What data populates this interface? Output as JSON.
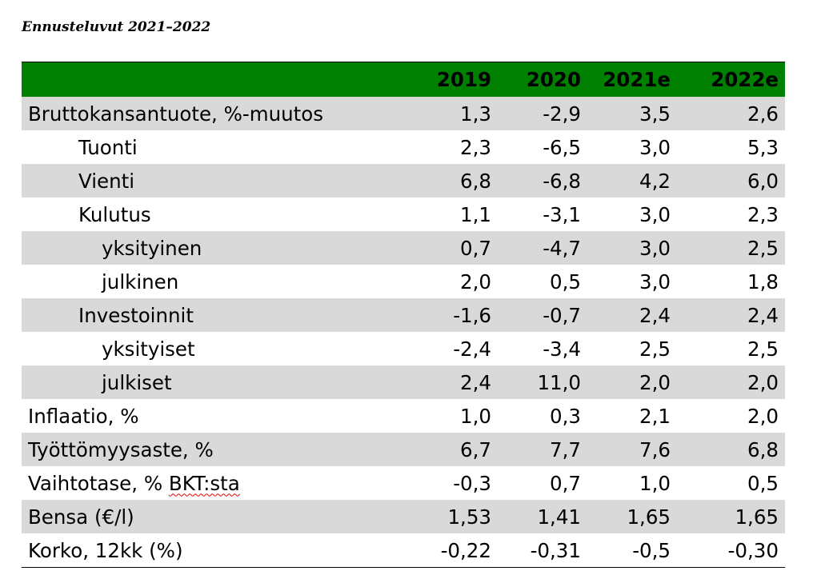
{
  "caption": "Ennusteluvut 2021–2022",
  "table": {
    "columns": [
      "2019",
      "2020",
      "2021e",
      "2022e"
    ],
    "rows": [
      {
        "label": "Bruttokansantuote, %-muutos",
        "values": [
          "1,3",
          "-2,9",
          "3,5",
          "2,6"
        ]
      },
      {
        "label": "Tuonti",
        "values": [
          "2,3",
          "-6,5",
          "3,0",
          "5,3"
        ]
      },
      {
        "label": "Vienti",
        "values": [
          "6,8",
          "-6,8",
          "4,2",
          "6,0"
        ]
      },
      {
        "label": "Kulutus",
        "values": [
          "1,1",
          "-3,1",
          "3,0",
          "2,3"
        ]
      },
      {
        "label": "yksityinen",
        "values": [
          "0,7",
          "-4,7",
          "3,0",
          "2,5"
        ]
      },
      {
        "label": "julkinen",
        "values": [
          "2,0",
          "0,5",
          "3,0",
          "1,8"
        ]
      },
      {
        "label": "Investoinnit",
        "values": [
          "-1,6",
          "-0,7",
          "2,4",
          "2,4"
        ]
      },
      {
        "label": "yksityiset",
        "values": [
          "-2,4",
          "-3,4",
          "2,5",
          "2,5"
        ]
      },
      {
        "label": "julkiset",
        "values": [
          "2,4",
          "11,0",
          "2,0",
          "2,0"
        ]
      },
      {
        "label": "Inflaatio, %",
        "values": [
          "1,0",
          "0,3",
          "2,1",
          "2,0"
        ]
      },
      {
        "label": "Työttömyysaste, %",
        "values": [
          "6,7",
          "7,7",
          "7,6",
          "6,8"
        ]
      },
      {
        "label_prefix": "Vaihtotase, % ",
        "label_marked": "BKT:sta",
        "values": [
          "-0,3",
          "0,7",
          "1,0",
          "0,5"
        ]
      },
      {
        "label": "Bensa (€/l)",
        "values": [
          "1,53",
          "1,41",
          "1,65",
          "1,65"
        ]
      },
      {
        "label": "Korko, 12kk (%)",
        "values": [
          "-0,22",
          "-0,31",
          "-0,5",
          "-0,30"
        ]
      }
    ]
  },
  "colors": {
    "header_bg": "#008000",
    "shaded_row": "#d9d9d9",
    "spellcheck_underline": "#e00000"
  }
}
